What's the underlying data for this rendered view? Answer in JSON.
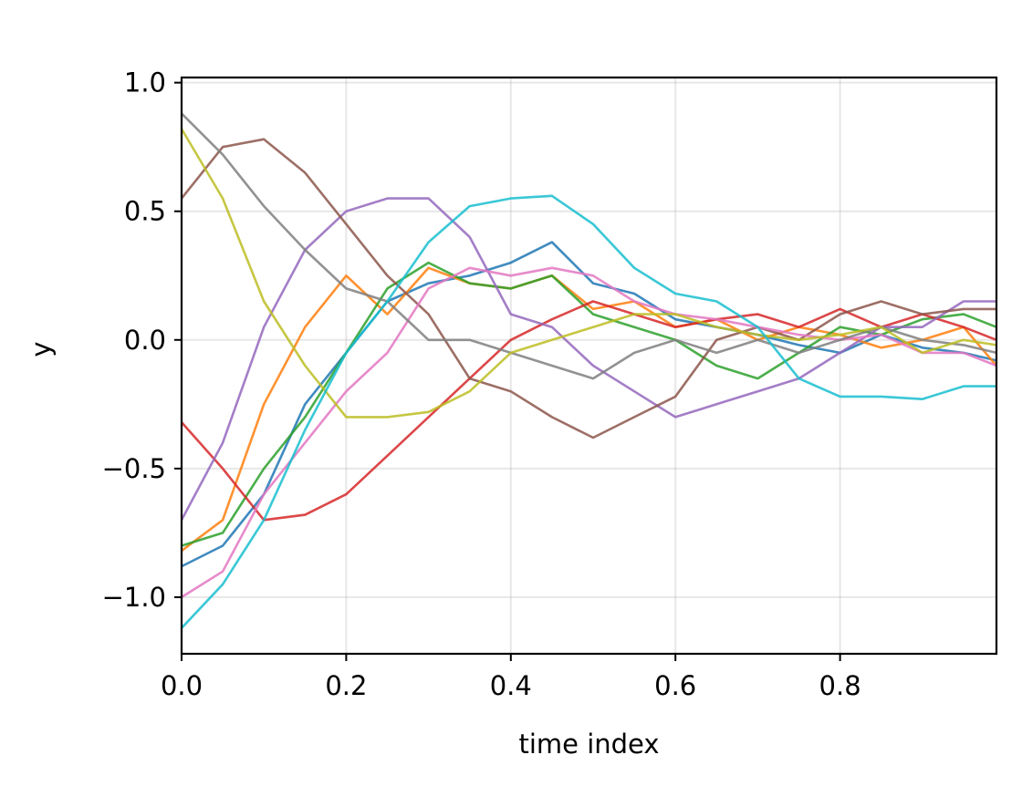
{
  "chart_data": {
    "type": "line",
    "title": "",
    "xlabel": "time index",
    "ylabel": "y",
    "xlim": [
      0.0,
      0.99
    ],
    "ylim": [
      -1.22,
      1.02
    ],
    "xticks": [
      0.0,
      0.2,
      0.4,
      0.6,
      0.8
    ],
    "xtick_labels": [
      "0.0",
      "0.2",
      "0.4",
      "0.6",
      "0.8"
    ],
    "yticks": [
      1.0,
      0.5,
      0.0,
      -0.5,
      -1.0
    ],
    "ytick_labels": [
      "1.0",
      "0.5",
      "0.0",
      "−0.5",
      "−1.0"
    ],
    "grid": true,
    "legend": "none",
    "series": [
      {
        "color": "#1f77b4",
        "x": [
          0.0,
          0.05,
          0.1,
          0.15,
          0.2,
          0.25,
          0.3,
          0.35,
          0.4,
          0.45,
          0.5,
          0.55,
          0.6,
          0.65,
          0.7,
          0.75,
          0.8,
          0.85,
          0.9,
          0.95,
          0.99
        ],
        "y": [
          -0.88,
          -0.8,
          -0.6,
          -0.25,
          -0.05,
          0.15,
          0.22,
          0.25,
          0.3,
          0.38,
          0.22,
          0.18,
          0.08,
          0.05,
          0.02,
          -0.02,
          -0.05,
          0.02,
          -0.03,
          -0.05,
          -0.08
        ]
      },
      {
        "color": "#ff7f0e",
        "x": [
          0.0,
          0.05,
          0.1,
          0.15,
          0.2,
          0.25,
          0.3,
          0.35,
          0.4,
          0.45,
          0.5,
          0.55,
          0.6,
          0.65,
          0.7,
          0.75,
          0.8,
          0.85,
          0.9,
          0.95,
          0.99
        ],
        "y": [
          -0.82,
          -0.7,
          -0.25,
          0.05,
          0.25,
          0.1,
          0.28,
          0.22,
          0.2,
          0.25,
          0.12,
          0.15,
          0.05,
          0.08,
          0.0,
          0.05,
          0.02,
          -0.03,
          0.0,
          0.05,
          -0.1
        ]
      },
      {
        "color": "#2ca02c",
        "x": [
          0.0,
          0.05,
          0.1,
          0.15,
          0.2,
          0.25,
          0.3,
          0.35,
          0.4,
          0.45,
          0.5,
          0.55,
          0.6,
          0.65,
          0.7,
          0.75,
          0.8,
          0.85,
          0.9,
          0.95,
          0.99
        ],
        "y": [
          -0.8,
          -0.75,
          -0.5,
          -0.3,
          -0.05,
          0.2,
          0.3,
          0.22,
          0.2,
          0.25,
          0.1,
          0.05,
          0.0,
          -0.1,
          -0.15,
          -0.05,
          0.05,
          0.02,
          0.08,
          0.1,
          0.05
        ]
      },
      {
        "color": "#d62728",
        "x": [
          0.0,
          0.05,
          0.1,
          0.15,
          0.2,
          0.25,
          0.3,
          0.35,
          0.4,
          0.45,
          0.5,
          0.55,
          0.6,
          0.65,
          0.7,
          0.75,
          0.8,
          0.85,
          0.9,
          0.95,
          0.99
        ],
        "y": [
          -0.32,
          -0.5,
          -0.7,
          -0.68,
          -0.6,
          -0.45,
          -0.3,
          -0.15,
          0.0,
          0.08,
          0.15,
          0.1,
          0.05,
          0.08,
          0.1,
          0.05,
          0.12,
          0.05,
          0.1,
          0.05,
          0.0
        ]
      },
      {
        "color": "#9467bd",
        "x": [
          0.0,
          0.05,
          0.1,
          0.15,
          0.2,
          0.25,
          0.3,
          0.35,
          0.4,
          0.45,
          0.5,
          0.55,
          0.6,
          0.65,
          0.7,
          0.75,
          0.8,
          0.85,
          0.9,
          0.95,
          0.99
        ],
        "y": [
          -0.7,
          -0.4,
          0.05,
          0.35,
          0.5,
          0.55,
          0.55,
          0.4,
          0.1,
          0.05,
          -0.1,
          -0.2,
          -0.3,
          -0.25,
          -0.2,
          -0.15,
          -0.05,
          0.05,
          0.05,
          0.15,
          0.15
        ]
      },
      {
        "color": "#8c564b",
        "x": [
          0.0,
          0.05,
          0.1,
          0.15,
          0.2,
          0.25,
          0.3,
          0.35,
          0.4,
          0.45,
          0.5,
          0.55,
          0.6,
          0.65,
          0.7,
          0.75,
          0.8,
          0.85,
          0.9,
          0.95,
          0.99
        ],
        "y": [
          0.55,
          0.75,
          0.78,
          0.65,
          0.45,
          0.25,
          0.1,
          -0.15,
          -0.2,
          -0.3,
          -0.38,
          -0.3,
          -0.22,
          0.0,
          0.05,
          0.0,
          0.1,
          0.15,
          0.1,
          0.12,
          0.12
        ]
      },
      {
        "color": "#e377c2",
        "x": [
          0.0,
          0.05,
          0.1,
          0.15,
          0.2,
          0.25,
          0.3,
          0.35,
          0.4,
          0.45,
          0.5,
          0.55,
          0.6,
          0.65,
          0.7,
          0.75,
          0.8,
          0.85,
          0.9,
          0.95,
          0.99
        ],
        "y": [
          -1.0,
          -0.9,
          -0.6,
          -0.4,
          -0.2,
          -0.05,
          0.2,
          0.28,
          0.25,
          0.28,
          0.25,
          0.15,
          0.1,
          0.08,
          0.05,
          0.02,
          0.0,
          0.02,
          -0.05,
          -0.05,
          -0.1
        ]
      },
      {
        "color": "#7f7f7f",
        "x": [
          0.0,
          0.05,
          0.1,
          0.15,
          0.2,
          0.25,
          0.3,
          0.35,
          0.4,
          0.45,
          0.5,
          0.55,
          0.6,
          0.65,
          0.7,
          0.75,
          0.8,
          0.85,
          0.9,
          0.95,
          0.99
        ],
        "y": [
          0.88,
          0.72,
          0.52,
          0.35,
          0.2,
          0.15,
          0.0,
          0.0,
          -0.05,
          -0.1,
          -0.15,
          -0.05,
          0.0,
          -0.05,
          0.0,
          -0.05,
          0.0,
          0.05,
          0.0,
          -0.02,
          -0.05
        ]
      },
      {
        "color": "#bcbd22",
        "x": [
          0.0,
          0.05,
          0.1,
          0.15,
          0.2,
          0.25,
          0.3,
          0.35,
          0.4,
          0.45,
          0.5,
          0.55,
          0.6,
          0.65,
          0.7,
          0.75,
          0.8,
          0.85,
          0.9,
          0.95,
          0.99
        ],
        "y": [
          0.82,
          0.55,
          0.15,
          -0.1,
          -0.3,
          -0.3,
          -0.28,
          -0.2,
          -0.05,
          0.0,
          0.05,
          0.1,
          0.1,
          0.05,
          0.02,
          0.0,
          0.02,
          0.05,
          -0.05,
          0.0,
          -0.02
        ]
      },
      {
        "color": "#17becf",
        "x": [
          0.0,
          0.05,
          0.1,
          0.15,
          0.2,
          0.25,
          0.3,
          0.35,
          0.4,
          0.45,
          0.5,
          0.55,
          0.6,
          0.65,
          0.7,
          0.75,
          0.8,
          0.85,
          0.9,
          0.95,
          0.99
        ],
        "y": [
          -1.12,
          -0.95,
          -0.7,
          -0.35,
          -0.05,
          0.15,
          0.38,
          0.52,
          0.55,
          0.56,
          0.45,
          0.28,
          0.18,
          0.15,
          0.05,
          -0.15,
          -0.22,
          -0.22,
          -0.23,
          -0.18,
          -0.18
        ]
      }
    ]
  }
}
